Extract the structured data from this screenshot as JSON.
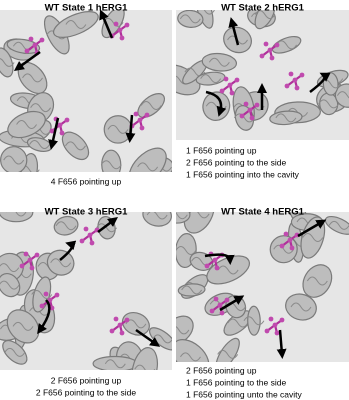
{
  "panels": [
    {
      "title": "WT State 1 hERG1",
      "caption": [
        "4 F656 pointing up"
      ]
    },
    {
      "title": "WT State 2 hERG1",
      "caption": [
        "1 F656 pointing up",
        "2 F656 pointing to the side",
        "1 F656 pointing into the cavity"
      ]
    },
    {
      "title": "WT State 3 hERG1",
      "caption": [
        "2 F656 pointing up",
        "2 F656 pointing to the side"
      ]
    },
    {
      "title": "WT State 4 hERG1",
      "caption": [
        "2 F656 pointing up",
        "1 F656 pointing to the side",
        "1 F656 pointing unto the cavity"
      ]
    }
  ]
}
